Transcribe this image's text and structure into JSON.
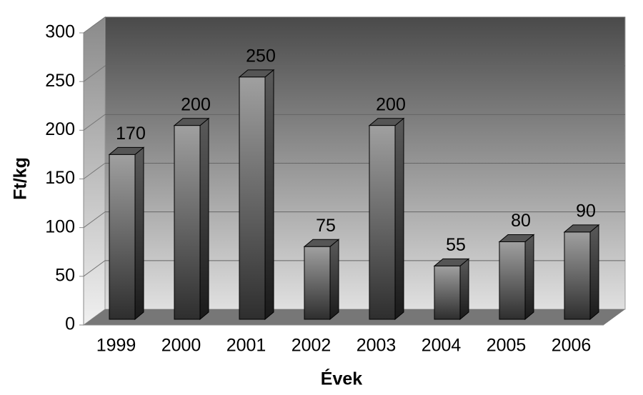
{
  "chart_data": {
    "type": "bar3d",
    "x_label": "Évek",
    "y_label": "Ft/kg",
    "categories": [
      "1999",
      "2000",
      "2001",
      "2002",
      "2003",
      "2004",
      "2005",
      "2006"
    ],
    "values": [
      170,
      200,
      250,
      75,
      200,
      55,
      80,
      90
    ],
    "color": "#555555",
    "ylim": [
      0,
      300
    ],
    "yticks": [
      0,
      50,
      100,
      150,
      200,
      250,
      300
    ],
    "grid": true
  }
}
